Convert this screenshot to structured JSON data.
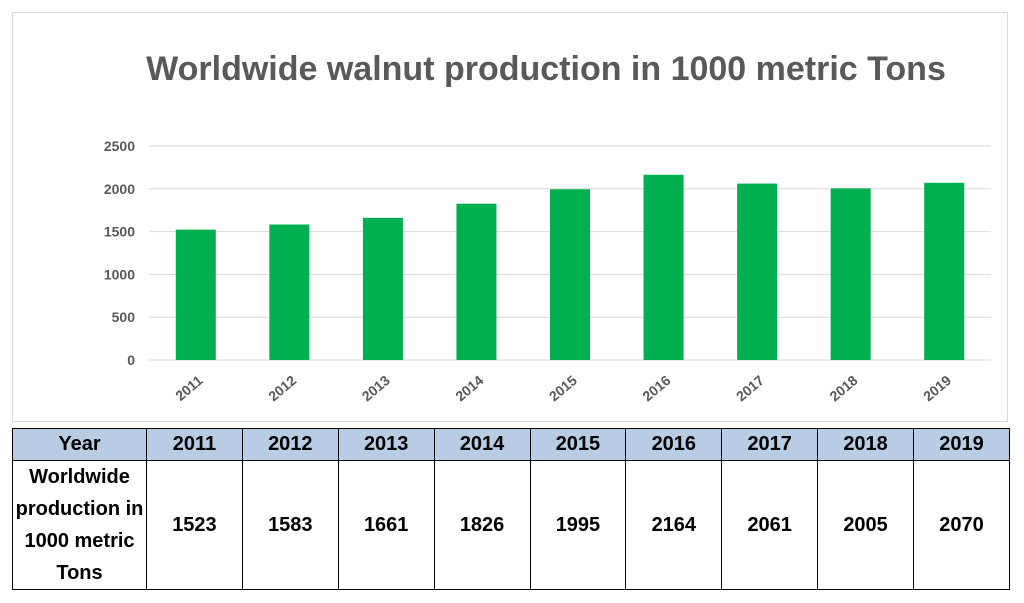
{
  "chart_data": {
    "type": "bar",
    "title": "Worldwide walnut production in 1000 metric Tons",
    "categories": [
      "2011",
      "2012",
      "2013",
      "2014",
      "2015",
      "2016",
      "2017",
      "2018",
      "2019"
    ],
    "values": [
      1523,
      1583,
      1661,
      1826,
      1995,
      2164,
      2061,
      2005,
      2070
    ],
    "yticks": [
      "0",
      "500",
      "1000",
      "1500",
      "2000",
      "2500"
    ],
    "ylim": [
      0,
      2500
    ],
    "xlabel": "",
    "ylabel": "",
    "grid": true,
    "bar_color": "#00b050"
  },
  "table": {
    "header_label": "Year",
    "row_label": "Worldwide production in 1000 metric Tons",
    "years": [
      "2011",
      "2012",
      "2013",
      "2014",
      "2015",
      "2016",
      "2017",
      "2018",
      "2019"
    ],
    "values": [
      "1523",
      "1583",
      "1661",
      "1826",
      "1995",
      "2164",
      "2061",
      "2005",
      "2070"
    ],
    "header_color": "#b8cce4"
  }
}
